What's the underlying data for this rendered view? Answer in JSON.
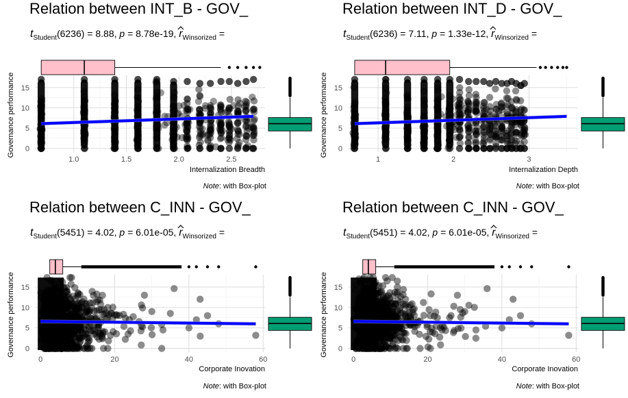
{
  "chart_data": [
    {
      "type": "scatter",
      "title": "Relation between INT_B - GOV_",
      "subtitle": {
        "t_label": "t",
        "t_sub": "Student",
        "stat": "(6236) = 8.88, ",
        "p_label": "p",
        "p_value": " = 8.78e-19, ",
        "r_label": "r",
        "r_sub": "Winsorized",
        "r_tail": " ="
      },
      "xlabel": "Internalization Breadth",
      "ylabel": "Governance performance",
      "note_label": "Note",
      "note_text": ": with Box-plot",
      "xlim": [
        0.63,
        2.82
      ],
      "ylim": [
        -0.9,
        18
      ],
      "x_ticks": [
        1.0,
        1.5,
        2.0,
        2.5
      ],
      "x_tick_labels": [
        "1.0",
        "1.5",
        "2.0",
        "2.5"
      ],
      "y_ticks": [
        0,
        5,
        10,
        15
      ],
      "y_tick_labels": [
        "0",
        "5",
        "10",
        "15"
      ],
      "x_columns": [
        0.69,
        1.1,
        1.39,
        1.61,
        1.79,
        1.95,
        2.08,
        2.2,
        2.3,
        2.4,
        2.48,
        2.56,
        2.64,
        2.71
      ],
      "column_ymax": [
        17,
        17,
        17,
        17,
        17,
        16.5,
        16.5,
        16,
        16,
        16.5,
        16.5,
        16,
        16.5,
        17
      ],
      "regression": {
        "x": [
          0.69,
          2.71
        ],
        "y": [
          6.1,
          7.9
        ]
      },
      "x_box": {
        "q1": 0.69,
        "median": 1.1,
        "q3": 1.39,
        "whisker_hi": 2.4,
        "outliers": [
          2.48,
          2.56,
          2.64,
          2.71,
          2.77
        ]
      },
      "y_box": {
        "min": 0,
        "q1": 4.3,
        "median": 6.1,
        "q3": 7.6,
        "max": 12.5,
        "outliers_lo": 13,
        "outliers_hi": 17.3
      },
      "colors": {
        "points": "#000000",
        "regression": "#0000ff",
        "x_box": "#ffc0cb",
        "y_box": "#009e73"
      }
    },
    {
      "type": "scatter",
      "title": "Relation between INT_D - GOV_",
      "subtitle": {
        "t_label": "t",
        "t_sub": "Student",
        "stat": "(6236) = 7.11, ",
        "p_label": "p",
        "p_value": " = 1.33e-12, ",
        "r_label": "r",
        "r_sub": "Winsorized",
        "r_tail": " ="
      },
      "xlabel": "Internalization Depth",
      "ylabel": "Governance performance",
      "note_label": "Note",
      "note_text": ": with Box-plot",
      "xlim": [
        0.6,
        3.65
      ],
      "ylim": [
        -0.9,
        18
      ],
      "x_ticks": [
        1,
        2,
        3
      ],
      "x_tick_labels": [
        "1",
        "2",
        "3"
      ],
      "y_ticks": [
        0,
        5,
        10,
        15
      ],
      "y_tick_labels": [
        "0",
        "5",
        "10",
        "15"
      ],
      "x_columns": [
        0.69,
        1.1,
        1.39,
        1.61,
        1.79,
        1.95,
        2.08,
        2.2,
        2.3,
        2.4,
        2.48,
        2.56,
        2.64,
        2.71,
        2.77,
        2.83,
        2.89,
        2.94
      ],
      "column_ymax": [
        17,
        17,
        17,
        17,
        17,
        17,
        17,
        16.5,
        16.5,
        16.5,
        16,
        16.5,
        16,
        16,
        16.5,
        16,
        15.5,
        16
      ],
      "regression": {
        "x": [
          0.69,
          3.5
        ],
        "y": [
          6.1,
          7.9
        ]
      },
      "x_box": {
        "q1": 0.69,
        "median": 1.1,
        "q3": 1.95,
        "whisker_hi": 3.1,
        "outliers": [
          3.15,
          3.22,
          3.3,
          3.38,
          3.45,
          3.5
        ]
      },
      "y_box": {
        "min": 0,
        "q1": 4.3,
        "median": 6.1,
        "q3": 7.6,
        "max": 12.5,
        "outliers_lo": 13,
        "outliers_hi": 17.3
      },
      "colors": {
        "points": "#000000",
        "regression": "#0000ff",
        "x_box": "#ffc0cb",
        "y_box": "#009e73"
      }
    },
    {
      "type": "scatter",
      "title": "Relation between C_INN - GOV_",
      "subtitle": {
        "t_label": "t",
        "t_sub": "Student",
        "stat": "(5451) = 4.02, ",
        "p_label": "p",
        "p_value": " = 6.01e-05, ",
        "r_label": "r",
        "r_sub": "Winsorized",
        "r_tail": " ="
      },
      "xlabel": "Corporate Inovation",
      "ylabel": "Governance performance",
      "note_label": "Note",
      "note_text": ": with Box-plot",
      "xlim": [
        -1.5,
        60.5
      ],
      "ylim": [
        -0.9,
        18
      ],
      "x_ticks": [
        0,
        20,
        40,
        60
      ],
      "x_tick_labels": [
        "0",
        "20",
        "40",
        "60"
      ],
      "y_ticks": [
        0,
        5,
        10,
        15
      ],
      "y_tick_labels": [
        "0",
        "5",
        "10",
        "15"
      ],
      "regression": {
        "x": [
          0,
          58
        ],
        "y": [
          6.6,
          6.0
        ]
      },
      "x_box": {
        "q1": 2.5,
        "median": 4,
        "q3": 6,
        "whisker_hi": 11,
        "outliers_from": 11,
        "outliers_to": 38,
        "far_outliers": [
          40,
          42,
          45,
          48,
          58
        ]
      },
      "y_box": {
        "min": 0,
        "q1": 4.4,
        "median": 6.1,
        "q3": 7.6,
        "max": 12.5,
        "outliers_lo": 13,
        "outliers_hi": 17.3
      },
      "colors": {
        "points": "#000000",
        "regression": "#0000ff",
        "x_box": "#ffc0cb",
        "y_box": "#009e73"
      }
    },
    {
      "type": "scatter",
      "title": "Relation between C_INN - GOV_",
      "subtitle": {
        "t_label": "t",
        "t_sub": "Student",
        "stat": "(5451) = 4.02, ",
        "p_label": "p",
        "p_value": " = 6.01e-05, ",
        "r_label": "r",
        "r_sub": "Winsorized",
        "r_tail": " ="
      },
      "xlabel": "Corporate Inovation",
      "ylabel": "Governance performance",
      "note_label": "Note",
      "note_text": ": with Box-plot",
      "xlim": [
        -1.5,
        60.5
      ],
      "ylim": [
        -0.9,
        18
      ],
      "x_ticks": [
        0,
        20,
        40,
        60
      ],
      "x_tick_labels": [
        "0",
        "20",
        "40",
        "60"
      ],
      "y_ticks": [
        0,
        5,
        10,
        15
      ],
      "y_tick_labels": [
        "0",
        "5",
        "10",
        "15"
      ],
      "regression": {
        "x": [
          0,
          58
        ],
        "y": [
          6.6,
          6.0
        ]
      },
      "x_box": {
        "q1": 2.5,
        "median": 4,
        "q3": 6,
        "whisker_hi": 11,
        "outliers_from": 11,
        "outliers_to": 38,
        "far_outliers": [
          40,
          42,
          45,
          48,
          58
        ]
      },
      "y_box": {
        "min": 0,
        "q1": 4.4,
        "median": 6.1,
        "q3": 7.6,
        "max": 12.5,
        "outliers_lo": 13,
        "outliers_hi": 17.3
      },
      "colors": {
        "points": "#000000",
        "regression": "#0000ff",
        "x_box": "#ffc0cb",
        "y_box": "#009e73"
      }
    }
  ]
}
